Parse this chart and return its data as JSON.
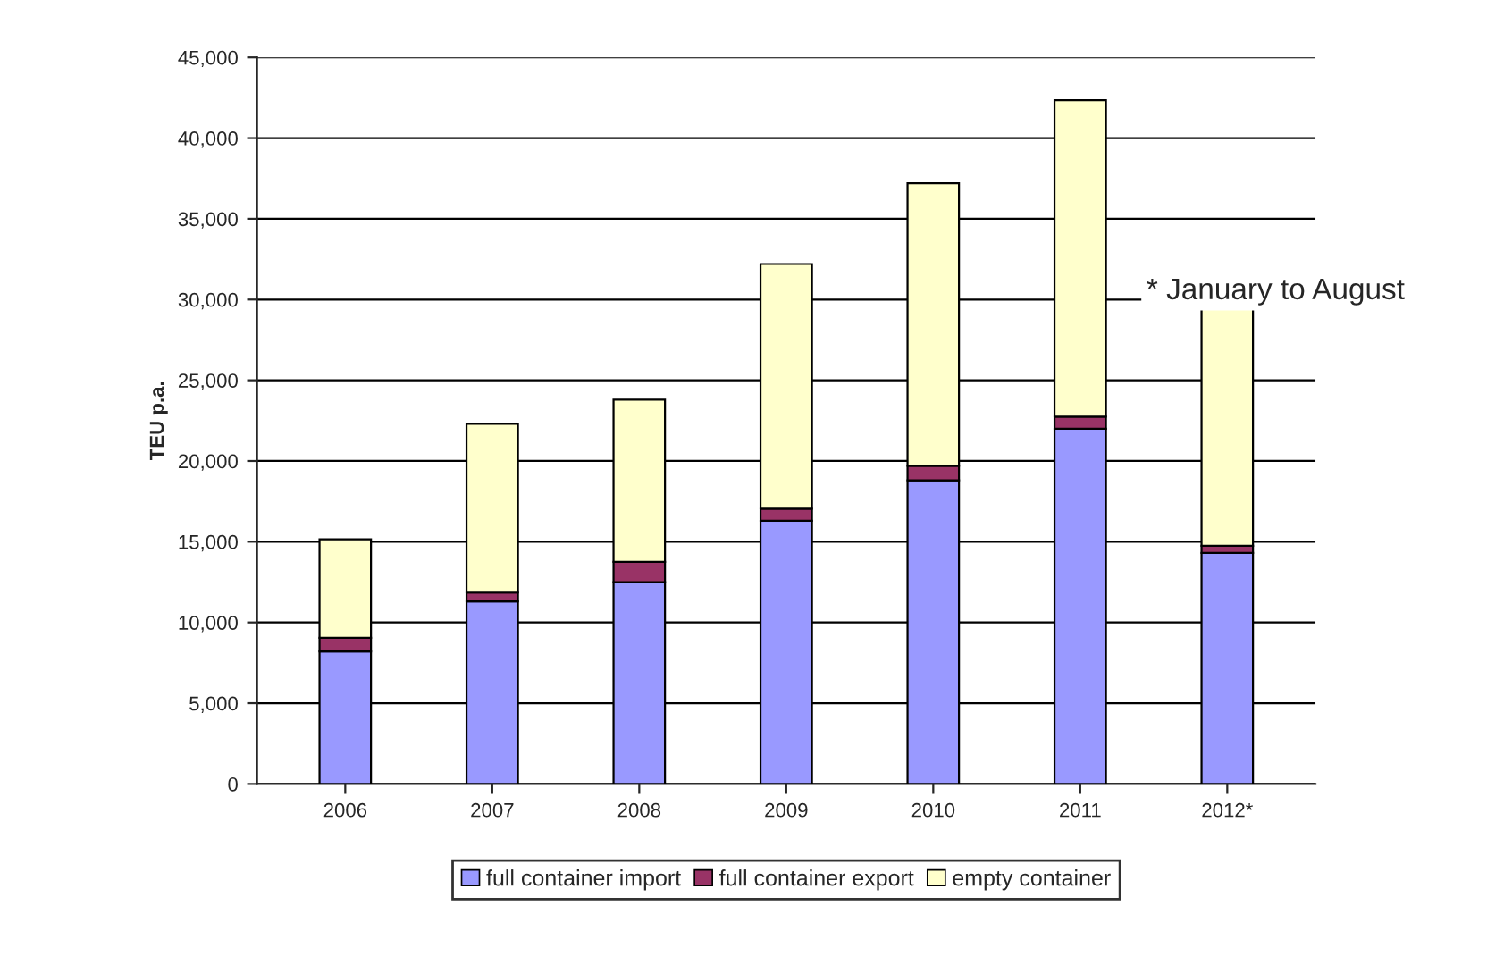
{
  "chart_data": {
    "type": "bar",
    "stacked": true,
    "ylabel": "TEU p.a.",
    "categories": [
      "2006",
      "2007",
      "2008",
      "2009",
      "2010",
      "2011",
      "2012*"
    ],
    "series": [
      {
        "name": "full container import",
        "color": "#9999ff",
        "values": [
          8200,
          11300,
          12500,
          16300,
          18800,
          22000,
          14300
        ]
      },
      {
        "name": "full container export",
        "color": "#993366",
        "values": [
          850,
          550,
          1250,
          750,
          900,
          750,
          450
        ]
      },
      {
        "name": "empty container",
        "color": "#ffffcc",
        "values": [
          6100,
          10450,
          10050,
          15150,
          17500,
          19600,
          14700
        ]
      }
    ],
    "ylim": [
      0,
      45000
    ],
    "yticks": [
      {
        "value": 0,
        "label": "0"
      },
      {
        "value": 5000,
        "label": "5,000"
      },
      {
        "value": 10000,
        "label": "10,000"
      },
      {
        "value": 15000,
        "label": "15,000"
      },
      {
        "value": 20000,
        "label": "20,000"
      },
      {
        "value": 25000,
        "label": "25,000"
      },
      {
        "value": 30000,
        "label": "30,000"
      },
      {
        "value": 35000,
        "label": "35,000"
      },
      {
        "value": 40000,
        "label": "40,000"
      },
      {
        "value": 45000,
        "label": "45,000"
      }
    ],
    "grid": "y",
    "legend": "bottom",
    "annotations": [
      "* January to August"
    ]
  }
}
